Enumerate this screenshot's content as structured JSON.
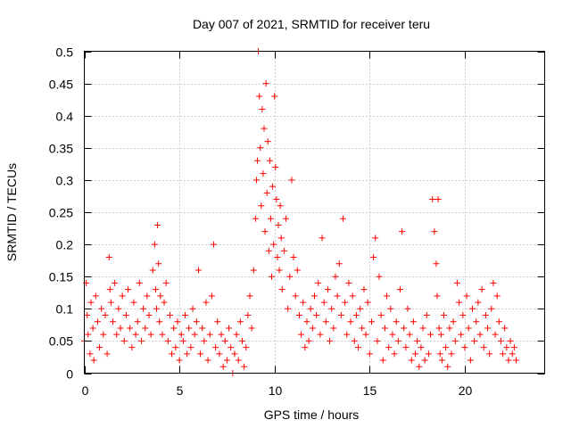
{
  "chart_data": {
    "type": "scatter",
    "title": "Day 007 of 2021, SRMTID for receiver teru",
    "xlabel": "GPS time / hours",
    "ylabel": "SRMTID / TECUs",
    "xlim": [
      0,
      24.2
    ],
    "ylim": [
      0,
      0.5
    ],
    "x_ticks": [
      0,
      5,
      10,
      15,
      20
    ],
    "x_tick_labels": [
      "0",
      "5",
      "10",
      "15",
      "20"
    ],
    "y_ticks": [
      0,
      0.05,
      0.1,
      0.15,
      0.2,
      0.25,
      0.3,
      0.35,
      0.4,
      0.45,
      0.5
    ],
    "y_tick_labels": [
      "0",
      "0.05",
      "0.1",
      "0.15",
      "0.2",
      "0.25",
      "0.3",
      "0.35",
      "0.4",
      "0.45",
      "0.5"
    ],
    "grid": true,
    "marker": "+",
    "color": "#ff0000",
    "series": [
      {
        "x": [
          0.0,
          0.1,
          0.15,
          0.2,
          0.3,
          0.35,
          0.45,
          0.5,
          0.6,
          0.7,
          0.8,
          0.9,
          1.0,
          1.1,
          1.2,
          1.3,
          1.35,
          1.4,
          1.5,
          1.6,
          1.7,
          1.8,
          1.9,
          2.0,
          2.1,
          2.2,
          2.3,
          2.4,
          2.5,
          2.6,
          2.7,
          2.8,
          2.9,
          3.0,
          3.1,
          3.2,
          3.3,
          3.4,
          3.5,
          3.6,
          3.7,
          3.75,
          3.8,
          3.85,
          3.9,
          3.95,
          4.0,
          4.1,
          4.2,
          4.3,
          4.4,
          4.5,
          4.6,
          4.7,
          4.8,
          4.9,
          5.0,
          5.1,
          5.2,
          5.3,
          5.4,
          5.5,
          5.6,
          5.7,
          5.8,
          5.9,
          6.0,
          6.1,
          6.2,
          6.3,
          6.4,
          6.5,
          6.6,
          6.7,
          6.8,
          6.9,
          7.0,
          7.1,
          7.2,
          7.3,
          7.4,
          7.5,
          7.6,
          7.7,
          7.8,
          7.9,
          8.0,
          8.1,
          8.2,
          8.3,
          8.4,
          8.5,
          8.6,
          8.7,
          8.8,
          8.9,
          9.0,
          9.05,
          9.1,
          9.15,
          9.2,
          9.25,
          9.3,
          9.35,
          9.4,
          9.45,
          9.5,
          9.55,
          9.6,
          9.65,
          9.7,
          9.75,
          9.8,
          9.85,
          9.9,
          9.95,
          10.0,
          10.05,
          10.1,
          10.15,
          10.2,
          10.25,
          10.3,
          10.35,
          10.4,
          10.5,
          10.6,
          10.7,
          10.8,
          10.9,
          11.0,
          11.1,
          11.2,
          11.3,
          11.4,
          11.5,
          11.6,
          11.7,
          11.8,
          11.9,
          12.0,
          12.1,
          12.2,
          12.3,
          12.4,
          12.5,
          12.6,
          12.7,
          12.8,
          12.9,
          13.0,
          13.1,
          13.2,
          13.3,
          13.4,
          13.5,
          13.6,
          13.7,
          13.8,
          13.9,
          14.0,
          14.1,
          14.2,
          14.3,
          14.4,
          14.5,
          14.6,
          14.7,
          14.8,
          14.9,
          15.0,
          15.1,
          15.2,
          15.3,
          15.4,
          15.5,
          15.6,
          15.7,
          15.8,
          15.9,
          16.0,
          16.1,
          16.2,
          16.3,
          16.4,
          16.5,
          16.6,
          16.7,
          16.8,
          16.9,
          17.0,
          17.1,
          17.2,
          17.3,
          17.4,
          17.5,
          17.6,
          17.7,
          17.8,
          17.9,
          18.0,
          18.1,
          18.2,
          18.3,
          18.4,
          18.5,
          18.55,
          18.6,
          18.65,
          18.7,
          18.75,
          18.8,
          18.9,
          19.0,
          19.1,
          19.2,
          19.3,
          19.4,
          19.5,
          19.6,
          19.7,
          19.8,
          19.9,
          20.0,
          20.1,
          20.2,
          20.3,
          20.4,
          20.5,
          20.6,
          20.7,
          20.8,
          20.9,
          21.0,
          21.1,
          21.2,
          21.3,
          21.4,
          21.5,
          21.6,
          21.7,
          21.8,
          21.9,
          22.0,
          22.1,
          22.2,
          22.3,
          22.4,
          22.5,
          22.6,
          22.7
        ],
        "y": [
          0.05,
          0.14,
          0.09,
          0.06,
          0.03,
          0.11,
          0.07,
          0.02,
          0.12,
          0.08,
          0.04,
          0.1,
          0.06,
          0.09,
          0.03,
          0.18,
          0.13,
          0.11,
          0.08,
          0.14,
          0.06,
          0.1,
          0.07,
          0.12,
          0.05,
          0.09,
          0.13,
          0.07,
          0.04,
          0.11,
          0.06,
          0.08,
          0.14,
          0.05,
          0.1,
          0.07,
          0.12,
          0.09,
          0.06,
          0.16,
          0.2,
          0.13,
          0.1,
          0.23,
          0.17,
          0.08,
          0.12,
          0.06,
          0.11,
          0.14,
          0.05,
          0.09,
          0.03,
          0.07,
          0.04,
          0.08,
          0.02,
          0.06,
          0.05,
          0.09,
          0.03,
          0.07,
          0.04,
          0.1,
          0.06,
          0.08,
          0.16,
          0.03,
          0.07,
          0.05,
          0.11,
          0.02,
          0.06,
          0.12,
          0.2,
          0.04,
          0.08,
          0.03,
          0.06,
          0.01,
          0.05,
          0.02,
          0.07,
          0.04,
          0.0,
          0.03,
          0.06,
          0.02,
          0.08,
          0.05,
          0.01,
          0.04,
          0.09,
          0.12,
          0.07,
          0.16,
          0.24,
          0.3,
          0.33,
          0.5,
          0.43,
          0.35,
          0.26,
          0.41,
          0.31,
          0.38,
          0.22,
          0.45,
          0.28,
          0.36,
          0.19,
          0.33,
          0.24,
          0.15,
          0.29,
          0.2,
          0.43,
          0.32,
          0.27,
          0.18,
          0.23,
          0.16,
          0.26,
          0.21,
          0.13,
          0.19,
          0.24,
          0.1,
          0.15,
          0.3,
          0.18,
          0.12,
          0.16,
          0.09,
          0.06,
          0.11,
          0.04,
          0.08,
          0.05,
          0.1,
          0.07,
          0.12,
          0.09,
          0.14,
          0.06,
          0.21,
          0.11,
          0.08,
          0.13,
          0.05,
          0.1,
          0.07,
          0.15,
          0.12,
          0.17,
          0.09,
          0.24,
          0.11,
          0.06,
          0.14,
          0.08,
          0.12,
          0.05,
          0.09,
          0.04,
          0.1,
          0.07,
          0.13,
          0.06,
          0.11,
          0.03,
          0.08,
          0.18,
          0.21,
          0.05,
          0.15,
          0.09,
          0.02,
          0.07,
          0.12,
          0.04,
          0.1,
          0.06,
          0.03,
          0.08,
          0.05,
          0.13,
          0.22,
          0.07,
          0.04,
          0.1,
          0.06,
          0.02,
          0.08,
          0.03,
          0.05,
          0.01,
          0.04,
          0.07,
          0.02,
          0.09,
          0.03,
          0.06,
          0.27,
          0.22,
          0.17,
          0.12,
          0.27,
          0.07,
          0.03,
          0.06,
          0.02,
          0.09,
          0.04,
          0.01,
          0.07,
          0.03,
          0.08,
          0.05,
          0.14,
          0.11,
          0.06,
          0.09,
          0.04,
          0.12,
          0.07,
          0.02,
          0.1,
          0.05,
          0.08,
          0.11,
          0.06,
          0.13,
          0.04,
          0.09,
          0.07,
          0.03,
          0.1,
          0.14,
          0.06,
          0.12,
          0.08,
          0.05,
          0.03,
          0.07,
          0.04,
          0.02,
          0.05,
          0.03,
          0.04,
          0.02
        ]
      }
    ]
  }
}
